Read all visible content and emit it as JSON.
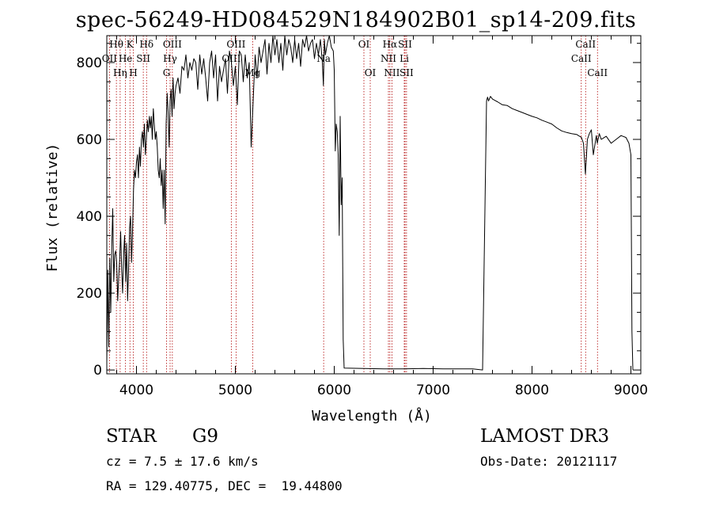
{
  "header": {
    "title": "spec-56249-HD084529N184902B01_sp14-209.fits"
  },
  "info": {
    "class_label": "STAR",
    "subclass": "G9",
    "survey": "LAMOST DR3",
    "redshift": "cz = 7.5 ± 17.6 km/s",
    "obs_date": "Obs-Date: 20121117",
    "coords": "RA = 129.40775, DEC =  19.44800"
  },
  "chart_data": {
    "type": "line",
    "title": "spec-56249-HD084529N184902B01_sp14-209.fits",
    "xlabel": "Wavelength (Å)",
    "ylabel": "Flux (relative)",
    "xlim": [
      3700,
      9100
    ],
    "ylim": [
      -10,
      870
    ],
    "xticks": [
      4000,
      5000,
      6000,
      7000,
      8000,
      9000
    ],
    "yticks": [
      0,
      200,
      400,
      600,
      800
    ],
    "xtick_labels": [
      "4000",
      "5000",
      "6000",
      "7000",
      "8000",
      "9000"
    ],
    "ytick_labels": [
      "0",
      "200",
      "400",
      "600",
      "800"
    ],
    "grid": false,
    "line_color": "#000000",
    "marker_color": "#b00000",
    "series": [
      {
        "name": "spectrum",
        "x": [
          3700,
          3710,
          3720,
          3730,
          3740,
          3750,
          3760,
          3770,
          3780,
          3790,
          3800,
          3810,
          3820,
          3830,
          3840,
          3850,
          3860,
          3870,
          3880,
          3890,
          3900,
          3910,
          3920,
          3930,
          3940,
          3950,
          3960,
          3970,
          3980,
          3990,
          4000,
          4010,
          4020,
          4030,
          4040,
          4050,
          4060,
          4070,
          4080,
          4090,
          4100,
          4110,
          4120,
          4130,
          4140,
          4150,
          4160,
          4170,
          4180,
          4190,
          4200,
          4210,
          4220,
          4230,
          4240,
          4250,
          4260,
          4270,
          4280,
          4290,
          4300,
          4310,
          4320,
          4330,
          4340,
          4350,
          4360,
          4370,
          4380,
          4390,
          4400,
          4420,
          4440,
          4460,
          4480,
          4500,
          4520,
          4540,
          4560,
          4580,
          4600,
          4620,
          4640,
          4660,
          4680,
          4700,
          4720,
          4740,
          4760,
          4780,
          4800,
          4820,
          4840,
          4860,
          4880,
          4900,
          4920,
          4940,
          4960,
          4980,
          5000,
          5020,
          5040,
          5060,
          5080,
          5100,
          5120,
          5140,
          5160,
          5180,
          5200,
          5220,
          5240,
          5260,
          5280,
          5300,
          5320,
          5340,
          5360,
          5380,
          5400,
          5420,
          5440,
          5460,
          5480,
          5500,
          5520,
          5540,
          5560,
          5580,
          5600,
          5620,
          5640,
          5660,
          5680,
          5700,
          5720,
          5740,
          5760,
          5780,
          5800,
          5820,
          5840,
          5860,
          5880,
          5890,
          5900,
          5910,
          5930,
          5950,
          5970,
          5990,
          6000,
          6010,
          6020,
          6030,
          6040,
          6050,
          6060,
          6070,
          6080,
          6090,
          6100,
          6300,
          6500,
          6700,
          6900,
          7100,
          7300,
          7400,
          7500,
          7540,
          7550,
          7560,
          7580,
          7600,
          7650,
          7700,
          7750,
          7800,
          7850,
          7900,
          7950,
          8000,
          8050,
          8100,
          8150,
          8200,
          8250,
          8300,
          8350,
          8400,
          8450,
          8500,
          8520,
          8540,
          8560,
          8580,
          8600,
          8620,
          8650,
          8660,
          8680,
          8700,
          8750,
          8800,
          8850,
          8900,
          8950,
          8980,
          9000,
          9010,
          9020
        ],
        "y": [
          20,
          260,
          60,
          290,
          150,
          320,
          420,
          230,
          300,
          310,
          280,
          180,
          240,
          290,
          360,
          260,
          200,
          300,
          350,
          230,
          330,
          180,
          260,
          370,
          400,
          280,
          360,
          470,
          520,
          500,
          540,
          560,
          500,
          580,
          530,
          600,
          620,
          580,
          640,
          560,
          600,
          650,
          620,
          660,
          630,
          660,
          600,
          680,
          640,
          600,
          620,
          580,
          520,
          500,
          550,
          480,
          520,
          420,
          520,
          380,
          640,
          720,
          670,
          580,
          700,
          730,
          660,
          760,
          680,
          720,
          740,
          760,
          720,
          790,
          780,
          820,
          760,
          800,
          780,
          810,
          800,
          730,
          820,
          770,
          810,
          760,
          700,
          800,
          830,
          760,
          820,
          700,
          790,
          750,
          780,
          810,
          720,
          830,
          800,
          740,
          790,
          690,
          830,
          820,
          750,
          820,
          760,
          800,
          580,
          700,
          820,
          760,
          840,
          800,
          830,
          860,
          770,
          850,
          800,
          870,
          820,
          860,
          800,
          850,
          780,
          870,
          820,
          860,
          840,
          800,
          860,
          810,
          850,
          790,
          860,
          840,
          880,
          830,
          850,
          860,
          810,
          850,
          820,
          860,
          800,
          740,
          860,
          820,
          850,
          870,
          840,
          830,
          780,
          570,
          640,
          620,
          560,
          350,
          660,
          430,
          500,
          80,
          5,
          4,
          3,
          3,
          4,
          3,
          3,
          3,
          0,
          700,
          710,
          700,
          712,
          705,
          698,
          690,
          688,
          680,
          675,
          670,
          665,
          660,
          656,
          650,
          645,
          640,
          630,
          622,
          618,
          615,
          613,
          605,
          590,
          510,
          600,
          615,
          625,
          560,
          610,
          590,
          615,
          600,
          608,
          590,
          600,
          610,
          605,
          590,
          560,
          100,
          0
        ]
      }
    ],
    "line_markers": [
      {
        "name": "Hθ",
        "x": 3797,
        "row": 0
      },
      {
        "name": "OII",
        "x": 3727,
        "row": 1
      },
      {
        "name": "Hη",
        "x": 3835,
        "row": 2
      },
      {
        "name": "K",
        "x": 3934,
        "row": 0
      },
      {
        "name": "He",
        "x": 3889,
        "row": 1
      },
      {
        "name": "H",
        "x": 3969,
        "row": 2
      },
      {
        "name": "Hδ",
        "x": 4102,
        "row": 0
      },
      {
        "name": "SII",
        "x": 4069,
        "row": 1
      },
      {
        "name": "OIII",
        "x": 4363,
        "row": 0
      },
      {
        "name": "Hγ",
        "x": 4340,
        "row": 1
      },
      {
        "name": "G",
        "x": 4304,
        "row": 2
      },
      {
        "name": "OIII",
        "x": 5007,
        "row": 0
      },
      {
        "name": "OIII",
        "x": 4959,
        "row": 1
      },
      {
        "name": "Mg",
        "x": 5175,
        "row": 2
      },
      {
        "name": "Na",
        "x": 5893,
        "row": 1
      },
      {
        "name": "OI",
        "x": 6300,
        "row": 0
      },
      {
        "name": "OI",
        "x": 6364,
        "row": 2
      },
      {
        "name": "Hα",
        "x": 6563,
        "row": 0
      },
      {
        "name": "SII",
        "x": 6716,
        "row": 0
      },
      {
        "name": "NII",
        "x": 6548,
        "row": 1
      },
      {
        "name": "Li",
        "x": 6708,
        "row": 1
      },
      {
        "name": "NII",
        "x": 6583,
        "row": 2
      },
      {
        "name": "SII",
        "x": 6731,
        "row": 2
      },
      {
        "name": "CaII",
        "x": 8542,
        "row": 0
      },
      {
        "name": "CaII",
        "x": 8498,
        "row": 1
      },
      {
        "name": "CaII",
        "x": 8662,
        "row": 2
      }
    ]
  }
}
